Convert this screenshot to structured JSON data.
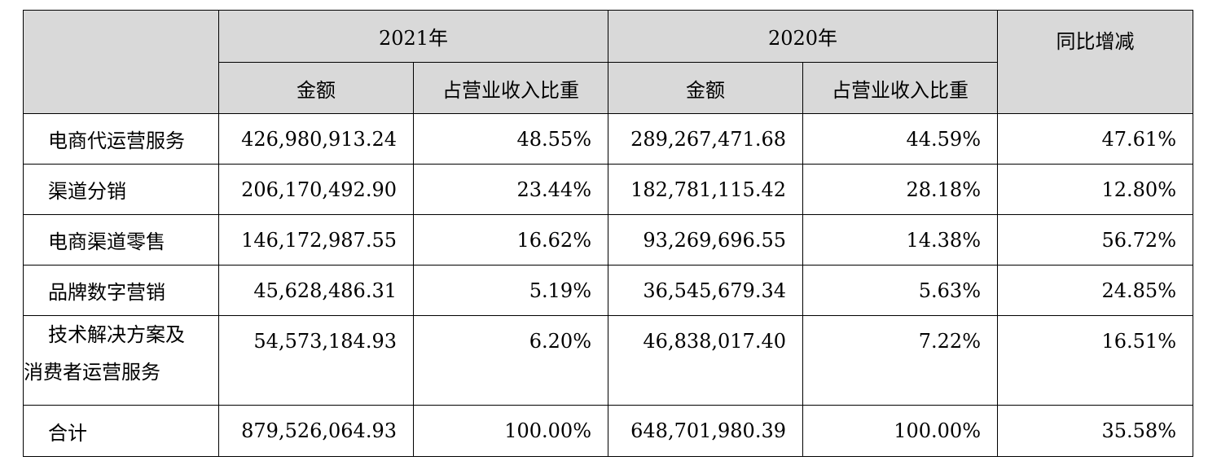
{
  "header": {
    "year_2021": "2021年",
    "year_2020": "2020年",
    "yoy": "同比增减",
    "amount": "金额",
    "share": "占营业收入比重"
  },
  "rows": [
    {
      "category": "电商代运营服务",
      "amount_2021": "426,980,913.24",
      "share_2021": "48.55%",
      "amount_2020": "289,267,471.68",
      "share_2020": "44.59%",
      "yoy": "47.61%"
    },
    {
      "category": "渠道分销",
      "amount_2021": "206,170,492.90",
      "share_2021": "23.44%",
      "amount_2020": "182,781,115.42",
      "share_2020": "28.18%",
      "yoy": "12.80%"
    },
    {
      "category": "电商渠道零售",
      "amount_2021": "146,172,987.55",
      "share_2021": "16.62%",
      "amount_2020": "93,269,696.55",
      "share_2020": "14.38%",
      "yoy": "56.72%"
    },
    {
      "category": "品牌数字营销",
      "amount_2021": "45,628,486.31",
      "share_2021": "5.19%",
      "amount_2020": "36,545,679.34",
      "share_2020": "5.63%",
      "yoy": "24.85%"
    },
    {
      "category_line1": "技术解决方案及",
      "category_line2": "消费者运营服务",
      "amount_2021": "54,573,184.93",
      "share_2021": "6.20%",
      "amount_2020": "46,838,017.40",
      "share_2020": "7.22%",
      "yoy": "16.51%"
    },
    {
      "category": "合计",
      "amount_2021": "879,526,064.93",
      "share_2021": "100.00%",
      "amount_2020": "648,701,980.39",
      "share_2020": "100.00%",
      "yoy": "35.58%"
    }
  ]
}
